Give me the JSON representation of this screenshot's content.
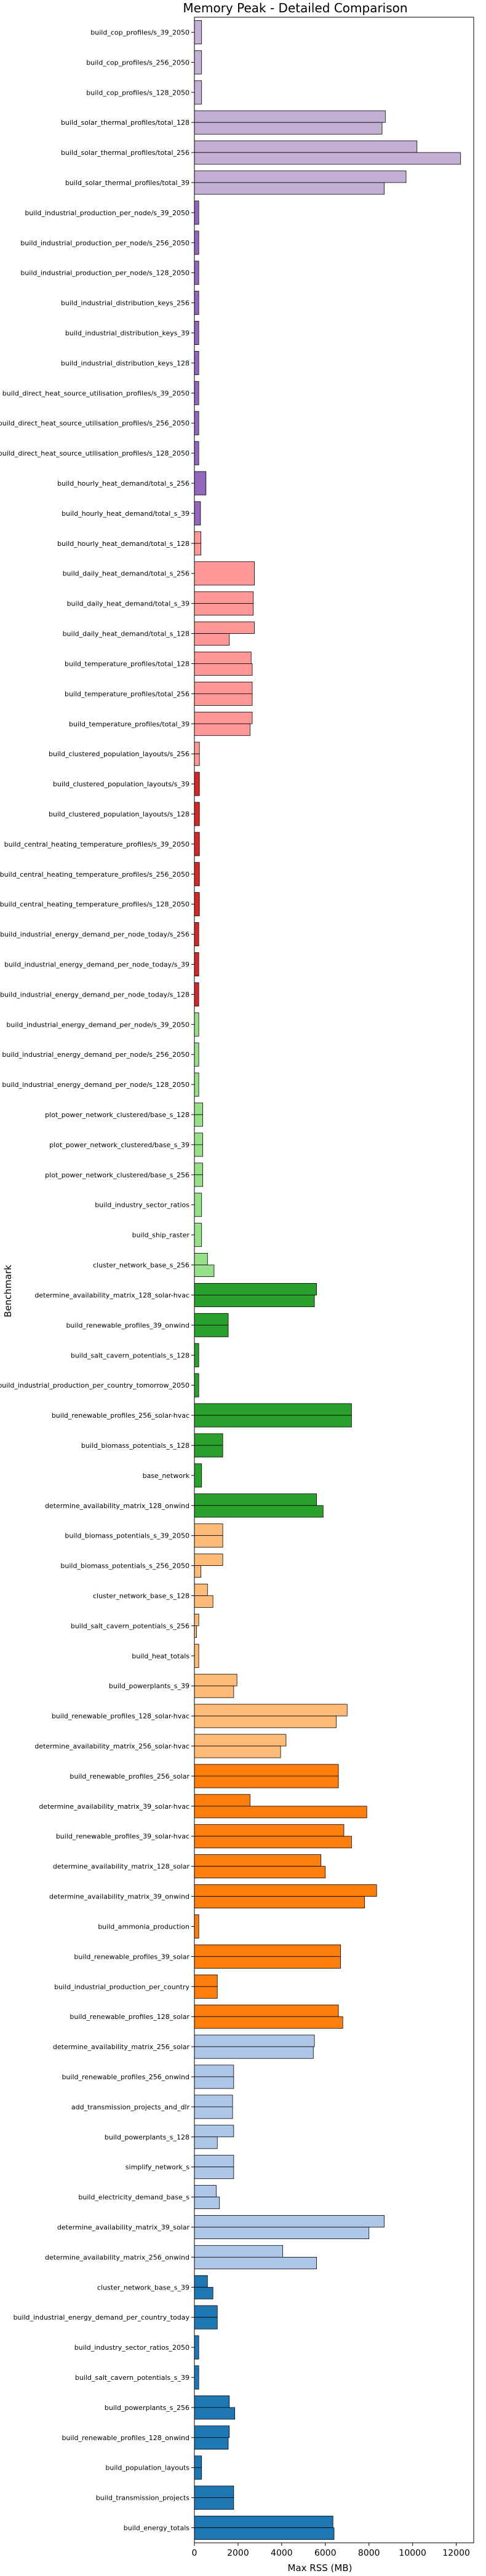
{
  "chart_data": {
    "type": "bar",
    "orientation": "horizontal",
    "title": "Memory Peak - Detailed Comparison",
    "xlabel": "Max RSS (MB)",
    "ylabel": "Benchmark",
    "xlim": [
      0,
      12800
    ],
    "xticks": [
      0,
      2000,
      4000,
      6000,
      8000,
      10000,
      12000
    ],
    "xtick_labels": [
      "0",
      "2000",
      "4000",
      "6000",
      "8000",
      "10000",
      "12000"
    ],
    "grid": false,
    "categories": [
      {
        "label": "build_cop_profiles/s_39_2050",
        "color": "#c5b0d5",
        "values": [
          330
        ]
      },
      {
        "label": "build_cop_profiles/s_256_2050",
        "color": "#c5b0d5",
        "values": [
          330
        ]
      },
      {
        "label": "build_cop_profiles/s_128_2050",
        "color": "#c5b0d5",
        "values": [
          330
        ]
      },
      {
        "label": "build_solar_thermal_profiles/total_128",
        "color": "#c5b0d5",
        "values": [
          8750,
          8600
        ]
      },
      {
        "label": "build_solar_thermal_profiles/total_256",
        "color": "#c5b0d5",
        "values": [
          10200,
          12200
        ]
      },
      {
        "label": "build_solar_thermal_profiles/total_39",
        "color": "#c5b0d5",
        "values": [
          9700,
          8700
        ]
      },
      {
        "label": "build_industrial_production_per_node/s_39_2050",
        "color": "#9467bd",
        "values": [
          200
        ]
      },
      {
        "label": "build_industrial_production_per_node/s_256_2050",
        "color": "#9467bd",
        "values": [
          200
        ]
      },
      {
        "label": "build_industrial_production_per_node/s_128_2050",
        "color": "#9467bd",
        "values": [
          200
        ]
      },
      {
        "label": "build_industrial_distribution_keys_256",
        "color": "#9467bd",
        "values": [
          200
        ]
      },
      {
        "label": "build_industrial_distribution_keys_39",
        "color": "#9467bd",
        "values": [
          200
        ]
      },
      {
        "label": "build_industrial_distribution_keys_128",
        "color": "#9467bd",
        "values": [
          200
        ]
      },
      {
        "label": "build_direct_heat_source_utilisation_profiles/s_39_2050",
        "color": "#9467bd",
        "values": [
          200
        ]
      },
      {
        "label": "build_direct_heat_source_utilisation_profiles/s_256_2050",
        "color": "#9467bd",
        "values": [
          200
        ]
      },
      {
        "label": "build_direct_heat_source_utilisation_profiles/s_128_2050",
        "color": "#9467bd",
        "values": [
          200
        ]
      },
      {
        "label": "build_hourly_heat_demand/total_s_256",
        "color": "#9467bd",
        "values": [
          530
        ]
      },
      {
        "label": "build_hourly_heat_demand/total_s_39",
        "color": "#9467bd",
        "values": [
          280
        ]
      },
      {
        "label": "build_hourly_heat_demand/total_s_128",
        "color": "#ff9896",
        "values": [
          300,
          300
        ]
      },
      {
        "label": "build_daily_heat_demand/total_s_256",
        "color": "#ff9896",
        "values": [
          2750
        ]
      },
      {
        "label": "build_daily_heat_demand/total_s_39",
        "color": "#ff9896",
        "values": [
          2700,
          2700
        ]
      },
      {
        "label": "build_daily_heat_demand/total_s_128",
        "color": "#ff9896",
        "values": [
          2750,
          1600
        ]
      },
      {
        "label": "build_temperature_profiles/total_128",
        "color": "#ff9896",
        "values": [
          2600,
          2650
        ]
      },
      {
        "label": "build_temperature_profiles/total_256",
        "color": "#ff9896",
        "values": [
          2650,
          2650
        ]
      },
      {
        "label": "build_temperature_profiles/total_39",
        "color": "#ff9896",
        "values": [
          2650,
          2550
        ]
      },
      {
        "label": "build_clustered_population_layouts/s_256",
        "color": "#ff9896",
        "values": [
          230,
          230
        ]
      },
      {
        "label": "build_clustered_population_layouts/s_39",
        "color": "#d62728",
        "values": [
          230
        ]
      },
      {
        "label": "build_clustered_population_layouts/s_128",
        "color": "#d62728",
        "values": [
          230
        ]
      },
      {
        "label": "build_central_heating_temperature_profiles/s_39_2050",
        "color": "#d62728",
        "values": [
          230
        ]
      },
      {
        "label": "build_central_heating_temperature_profiles/s_256_2050",
        "color": "#d62728",
        "values": [
          230
        ]
      },
      {
        "label": "build_central_heating_temperature_profiles/s_128_2050",
        "color": "#d62728",
        "values": [
          230
        ]
      },
      {
        "label": "build_industrial_energy_demand_per_node_today/s_256",
        "color": "#d62728",
        "values": [
          200
        ]
      },
      {
        "label": "build_industrial_energy_demand_per_node_today/s_39",
        "color": "#d62728",
        "values": [
          200
        ]
      },
      {
        "label": "build_industrial_energy_demand_per_node_today/s_128",
        "color": "#d62728",
        "values": [
          200
        ]
      },
      {
        "label": "build_industrial_energy_demand_per_node/s_39_2050",
        "color": "#98df8a",
        "values": [
          200
        ]
      },
      {
        "label": "build_industrial_energy_demand_per_node/s_256_2050",
        "color": "#98df8a",
        "values": [
          200
        ]
      },
      {
        "label": "build_industrial_energy_demand_per_node/s_128_2050",
        "color": "#98df8a",
        "values": [
          200
        ]
      },
      {
        "label": "plot_power_network_clustered/base_s_128",
        "color": "#98df8a",
        "values": [
          380,
          380
        ]
      },
      {
        "label": "plot_power_network_clustered/base_s_39",
        "color": "#98df8a",
        "values": [
          380,
          380
        ]
      },
      {
        "label": "plot_power_network_clustered/base_s_256",
        "color": "#98df8a",
        "values": [
          380,
          380
        ]
      },
      {
        "label": "build_industry_sector_ratios",
        "color": "#98df8a",
        "values": [
          330
        ]
      },
      {
        "label": "build_ship_raster",
        "color": "#98df8a",
        "values": [
          330
        ]
      },
      {
        "label": "cluster_network_base_s_256",
        "color": "#98df8a",
        "values": [
          600,
          900
        ]
      },
      {
        "label": "determine_availability_matrix_128_solar-hvac",
        "color": "#2ca02c",
        "values": [
          5600,
          5500
        ]
      },
      {
        "label": "build_renewable_profiles_39_onwind",
        "color": "#2ca02c",
        "values": [
          1550,
          1550
        ]
      },
      {
        "label": "build_salt_cavern_potentials_s_128",
        "color": "#2ca02c",
        "values": [
          200
        ]
      },
      {
        "label": "build_industrial_production_per_country_tomorrow_2050",
        "color": "#2ca02c",
        "values": [
          200
        ]
      },
      {
        "label": "build_renewable_profiles_256_solar-hvac",
        "color": "#2ca02c",
        "values": [
          7200,
          7200
        ]
      },
      {
        "label": "build_biomass_potentials_s_128",
        "color": "#2ca02c",
        "values": [
          1300,
          1300
        ]
      },
      {
        "label": "base_network",
        "color": "#2ca02c",
        "values": [
          330
        ]
      },
      {
        "label": "determine_availability_matrix_128_onwind",
        "color": "#2ca02c",
        "values": [
          5600,
          5900
        ]
      },
      {
        "label": "build_biomass_potentials_s_39_2050",
        "color": "#ffbb78",
        "values": [
          1300,
          1300
        ]
      },
      {
        "label": "build_biomass_potentials_s_256_2050",
        "color": "#ffbb78",
        "values": [
          1300,
          300
        ]
      },
      {
        "label": "cluster_network_base_s_128",
        "color": "#ffbb78",
        "values": [
          600,
          850
        ]
      },
      {
        "label": "build_salt_cavern_potentials_s_256",
        "color": "#ffbb78",
        "values": [
          200,
          100
        ]
      },
      {
        "label": "build_heat_totals",
        "color": "#ffbb78",
        "values": [
          200
        ]
      },
      {
        "label": "build_powerplants_s_39",
        "color": "#ffbb78",
        "values": [
          1950,
          1800
        ]
      },
      {
        "label": "build_renewable_profiles_128_solar-hvac",
        "color": "#ffbb78",
        "values": [
          7000,
          6500
        ]
      },
      {
        "label": "determine_availability_matrix_256_solar-hvac",
        "color": "#ffbb78",
        "values": [
          4200,
          3950
        ]
      },
      {
        "label": "build_renewable_profiles_256_solar",
        "color": "#ff7f0e",
        "values": [
          6600,
          6600
        ]
      },
      {
        "label": "determine_availability_matrix_39_solar-hvac",
        "color": "#ff7f0e",
        "values": [
          2550,
          7900
        ]
      },
      {
        "label": "build_renewable_profiles_39_solar-hvac",
        "color": "#ff7f0e",
        "values": [
          6850,
          7200
        ]
      },
      {
        "label": "determine_availability_matrix_128_solar",
        "color": "#ff7f0e",
        "values": [
          5800,
          6000
        ]
      },
      {
        "label": "determine_availability_matrix_39_onwind",
        "color": "#ff7f0e",
        "values": [
          8350,
          7800
        ]
      },
      {
        "label": "build_ammonia_production",
        "color": "#ff7f0e",
        "values": [
          200
        ]
      },
      {
        "label": "build_renewable_profiles_39_solar",
        "color": "#ff7f0e",
        "values": [
          6700,
          6700
        ]
      },
      {
        "label": "build_industrial_production_per_country",
        "color": "#ff7f0e",
        "values": [
          1050,
          1050
        ]
      },
      {
        "label": "build_renewable_profiles_128_solar",
        "color": "#ff7f0e",
        "values": [
          6600,
          6800
        ]
      },
      {
        "label": "determine_availability_matrix_256_solar",
        "color": "#aec7e8",
        "values": [
          5500,
          5450
        ]
      },
      {
        "label": "build_renewable_profiles_256_onwind",
        "color": "#aec7e8",
        "values": [
          1800,
          1800
        ]
      },
      {
        "label": "add_transmission_projects_and_dlr",
        "color": "#aec7e8",
        "values": [
          1750,
          1750
        ]
      },
      {
        "label": "build_powerplants_s_128",
        "color": "#aec7e8",
        "values": [
          1800,
          1050
        ]
      },
      {
        "label": "simplify_network_s",
        "color": "#aec7e8",
        "values": [
          1800,
          1800
        ]
      },
      {
        "label": "build_electricity_demand_base_s",
        "color": "#aec7e8",
        "values": [
          1000,
          1150
        ]
      },
      {
        "label": "determine_availability_matrix_39_solar",
        "color": "#aec7e8",
        "values": [
          8700,
          8000
        ]
      },
      {
        "label": "determine_availability_matrix_256_onwind",
        "color": "#aec7e8",
        "values": [
          4050,
          5600
        ]
      },
      {
        "label": "cluster_network_base_s_39",
        "color": "#1f77b4",
        "values": [
          600,
          850
        ]
      },
      {
        "label": "build_industrial_energy_demand_per_country_today",
        "color": "#1f77b4",
        "values": [
          1050,
          1050
        ]
      },
      {
        "label": "build_industry_sector_ratios_2050",
        "color": "#1f77b4",
        "values": [
          200
        ]
      },
      {
        "label": "build_salt_cavern_potentials_s_39",
        "color": "#1f77b4",
        "values": [
          200
        ]
      },
      {
        "label": "build_powerplants_s_256",
        "color": "#1f77b4",
        "values": [
          1600,
          1850
        ]
      },
      {
        "label": "build_renewable_profiles_128_onwind",
        "color": "#1f77b4",
        "values": [
          1600,
          1550
        ]
      },
      {
        "label": "build_population_layouts",
        "color": "#1f77b4",
        "values": [
          330,
          330
        ]
      },
      {
        "label": "build_transmission_projects",
        "color": "#1f77b4",
        "values": [
          1800,
          1800
        ]
      },
      {
        "label": "build_energy_totals",
        "color": "#1f77b4",
        "values": [
          6350,
          6400
        ]
      }
    ]
  }
}
